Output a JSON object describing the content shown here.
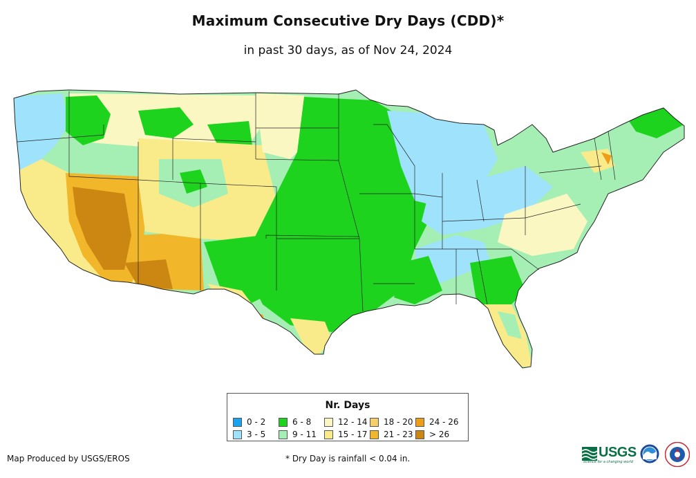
{
  "header": {
    "title": "Maximum Consecutive Dry Days (CDD)*",
    "subtitle": "in past 30 days, as of Nov 24, 2024"
  },
  "map": {
    "region": "Contiguous United States",
    "colors": {
      "ocean": "#ffffff",
      "border": "#222222"
    }
  },
  "legend": {
    "title": "Nr. Days",
    "classes": [
      {
        "label": "0 - 2",
        "color": "#1aa3f2"
      },
      {
        "label": "3 - 5",
        "color": "#9ee3fb"
      },
      {
        "label": "6 - 8",
        "color": "#1ed31e"
      },
      {
        "label": "9 - 11",
        "color": "#a6efb4"
      },
      {
        "label": "12 - 14",
        "color": "#fbf7c2"
      },
      {
        "label": "15 - 17",
        "color": "#f9ea8a"
      },
      {
        "label": "18 - 20",
        "color": "#f7cf6a"
      },
      {
        "label": "21 - 23",
        "color": "#f1b62a"
      },
      {
        "label": "24 - 26",
        "color": "#ee9d18"
      },
      {
        "label": "> 26",
        "color": "#cc8612"
      }
    ]
  },
  "footer": {
    "credit": "Map Produced by USGS/EROS",
    "footnote": "* Dry Day is rainfall < 0.04 in.",
    "logos": {
      "usgs_text": "USGS",
      "usgs_tagline": "science for a changing world",
      "noaa_icon": "noaa-logo",
      "nws_icon": "national-weather-service-logo"
    }
  }
}
